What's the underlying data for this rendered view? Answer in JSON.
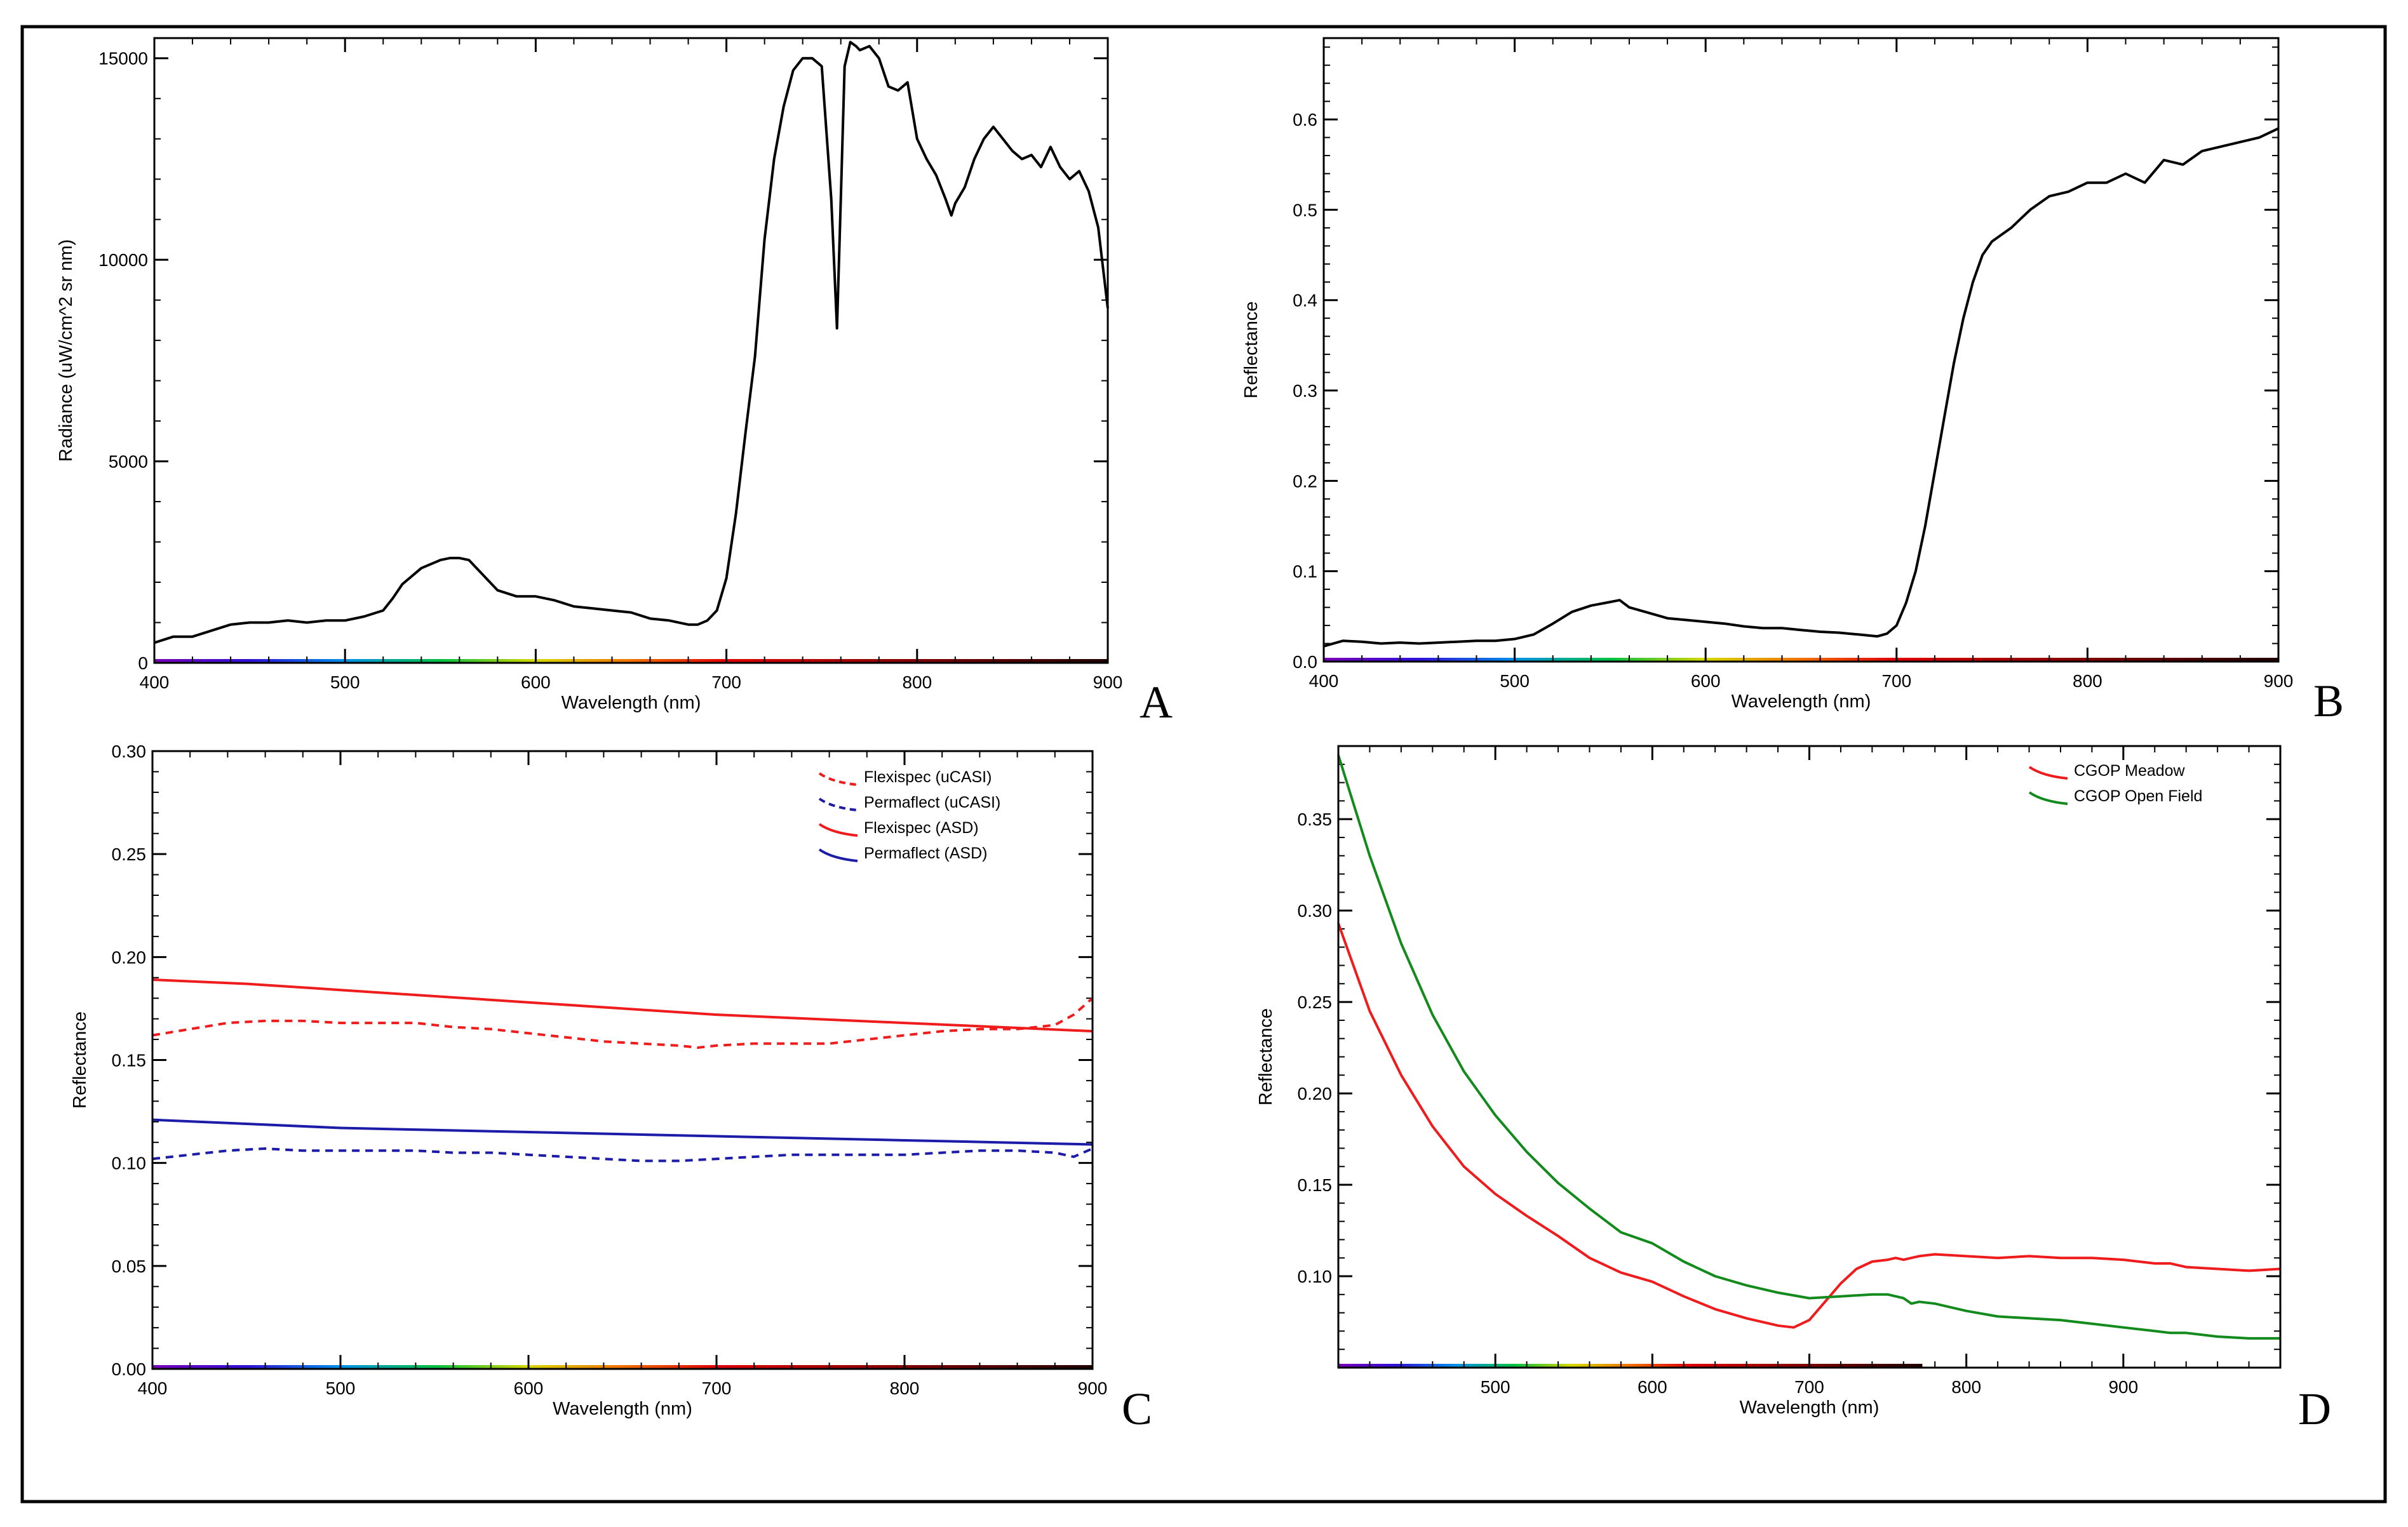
{
  "colors": {
    "axis": "#000000",
    "red": "#ee1c1c",
    "blue": "#1c1ca8",
    "green": "#138a1c",
    "black": "#000000"
  },
  "chart_data": [
    {
      "type": "line",
      "panel_label": "A",
      "title": "",
      "xlabel": "Wavelength (nm)",
      "ylabel": "Radiance (uW/cm^2 sr nm)",
      "xlim": [
        400,
        900
      ],
      "ylim": [
        0,
        15500
      ],
      "xticks": [
        400,
        500,
        600,
        700,
        800,
        900
      ],
      "xtick_labels": [
        "400",
        "500",
        "600",
        "700",
        "800",
        "900"
      ],
      "yticks": [
        0,
        5000,
        10000,
        15000
      ],
      "ytick_labels": [
        "0",
        "5000",
        "10000",
        "15000"
      ],
      "legend": [],
      "series": [
        {
          "name": "Radiance",
          "color": "#000000",
          "dash": false,
          "x": [
            400,
            410,
            420,
            430,
            440,
            450,
            460,
            470,
            480,
            490,
            500,
            510,
            520,
            525,
            530,
            540,
            550,
            555,
            560,
            565,
            570,
            580,
            590,
            600,
            610,
            620,
            630,
            640,
            650,
            660,
            670,
            680,
            685,
            690,
            695,
            700,
            705,
            710,
            715,
            720,
            725,
            730,
            735,
            740,
            745,
            750,
            755,
            758,
            760,
            762,
            765,
            768,
            770,
            775,
            780,
            785,
            790,
            795,
            800,
            805,
            810,
            815,
            818,
            820,
            825,
            830,
            835,
            840,
            845,
            850,
            855,
            860,
            865,
            870,
            875,
            880,
            885,
            890,
            895,
            900
          ],
          "y": [
            500,
            650,
            650,
            800,
            950,
            1000,
            1000,
            1050,
            1000,
            1050,
            1050,
            1150,
            1300,
            1600,
            1950,
            2350,
            2550,
            2600,
            2600,
            2550,
            2300,
            1800,
            1650,
            1650,
            1550,
            1400,
            1350,
            1300,
            1250,
            1100,
            1050,
            950,
            950,
            1050,
            1300,
            2100,
            3700,
            5700,
            7600,
            10500,
            12500,
            13800,
            14700,
            15000,
            15000,
            14800,
            11500,
            8300,
            11500,
            14800,
            15400,
            15300,
            15200,
            15300,
            15000,
            14300,
            14200,
            14400,
            13000,
            12500,
            12100,
            11500,
            11100,
            11400,
            11800,
            12500,
            13000,
            13300,
            13000,
            12700,
            12500,
            12600,
            12300,
            12800,
            12300,
            12000,
            12200,
            11700,
            10800,
            8800
          ]
        }
      ]
    },
    {
      "type": "line",
      "panel_label": "B",
      "title": "",
      "xlabel": "Wavelength (nm)",
      "ylabel": "Reflectance",
      "xlim": [
        400,
        900
      ],
      "ylim": [
        0,
        0.69
      ],
      "xticks": [
        400,
        500,
        600,
        700,
        800,
        900
      ],
      "xtick_labels": [
        "400",
        "500",
        "600",
        "700",
        "800",
        "900"
      ],
      "yticks": [
        0,
        0.1,
        0.2,
        0.3,
        0.4,
        0.5,
        0.6
      ],
      "ytick_labels": [
        "0.0",
        "0.1",
        "0.2",
        "0.3",
        "0.4",
        "0.5",
        "0.6"
      ],
      "legend": [],
      "series": [
        {
          "name": "Reflectance",
          "color": "#000000",
          "dash": false,
          "x": [
            400,
            410,
            420,
            430,
            440,
            450,
            460,
            470,
            480,
            490,
            500,
            510,
            520,
            530,
            540,
            550,
            555,
            560,
            570,
            580,
            590,
            600,
            610,
            620,
            630,
            640,
            650,
            660,
            670,
            680,
            690,
            695,
            700,
            705,
            710,
            715,
            720,
            725,
            730,
            735,
            740,
            745,
            750,
            760,
            770,
            780,
            790,
            800,
            810,
            820,
            830,
            840,
            850,
            860,
            870,
            880,
            890,
            900
          ],
          "y": [
            0.017,
            0.023,
            0.022,
            0.02,
            0.021,
            0.02,
            0.021,
            0.022,
            0.023,
            0.023,
            0.025,
            0.03,
            0.042,
            0.055,
            0.062,
            0.066,
            0.068,
            0.06,
            0.054,
            0.048,
            0.046,
            0.044,
            0.042,
            0.039,
            0.037,
            0.037,
            0.035,
            0.033,
            0.032,
            0.03,
            0.028,
            0.031,
            0.04,
            0.065,
            0.1,
            0.15,
            0.21,
            0.27,
            0.33,
            0.38,
            0.42,
            0.45,
            0.465,
            0.48,
            0.5,
            0.515,
            0.52,
            0.53,
            0.53,
            0.54,
            0.53,
            0.555,
            0.55,
            0.565,
            0.57,
            0.575,
            0.58,
            0.59
          ]
        }
      ]
    },
    {
      "type": "line",
      "panel_label": "C",
      "title": "",
      "xlabel": "Wavelength (nm)",
      "ylabel": "Reflectance",
      "xlim": [
        400,
        900
      ],
      "ylim": [
        0,
        0.3
      ],
      "xticks": [
        400,
        500,
        600,
        700,
        800,
        900
      ],
      "xtick_labels": [
        "400",
        "500",
        "600",
        "700",
        "800",
        "900"
      ],
      "yticks": [
        0,
        0.05,
        0.1,
        0.15,
        0.2,
        0.25,
        0.3
      ],
      "ytick_labels": [
        "0.00",
        "0.05",
        "0.10",
        "0.15",
        "0.20",
        "0.25",
        "0.30"
      ],
      "legend": [
        "Flexispec (uCASI)",
        "Permaflect (uCASI)",
        "Flexispec (ASD)",
        "Permaflect (ASD)"
      ],
      "legend_position": "top-right",
      "series": [
        {
          "name": "Flexispec (uCASI)",
          "color": "#ee1c1c",
          "dash": true,
          "x": [
            400,
            420,
            440,
            460,
            480,
            500,
            520,
            540,
            560,
            580,
            600,
            620,
            640,
            660,
            680,
            690,
            700,
            720,
            740,
            760,
            780,
            800,
            820,
            840,
            860,
            880,
            890,
            900
          ],
          "y": [
            0.162,
            0.165,
            0.168,
            0.169,
            0.169,
            0.168,
            0.168,
            0.168,
            0.166,
            0.165,
            0.163,
            0.161,
            0.159,
            0.158,
            0.157,
            0.156,
            0.157,
            0.158,
            0.158,
            0.158,
            0.16,
            0.162,
            0.164,
            0.165,
            0.165,
            0.167,
            0.172,
            0.18
          ]
        },
        {
          "name": "Permaflect (uCASI)",
          "color": "#1c1ca8",
          "dash": true,
          "x": [
            400,
            420,
            440,
            460,
            480,
            500,
            520,
            540,
            560,
            580,
            600,
            620,
            640,
            660,
            680,
            700,
            720,
            740,
            760,
            780,
            800,
            820,
            840,
            860,
            880,
            890,
            900
          ],
          "y": [
            0.102,
            0.104,
            0.106,
            0.107,
            0.106,
            0.106,
            0.106,
            0.106,
            0.105,
            0.105,
            0.104,
            0.103,
            0.102,
            0.101,
            0.101,
            0.102,
            0.103,
            0.104,
            0.104,
            0.104,
            0.104,
            0.105,
            0.106,
            0.106,
            0.105,
            0.103,
            0.107
          ]
        },
        {
          "name": "Flexispec (ASD)",
          "color": "#ee1c1c",
          "dash": false,
          "x": [
            400,
            450,
            500,
            550,
            600,
            650,
            700,
            750,
            800,
            850,
            900
          ],
          "y": [
            0.189,
            0.187,
            0.184,
            0.181,
            0.178,
            0.175,
            0.172,
            0.17,
            0.168,
            0.166,
            0.164
          ]
        },
        {
          "name": "Permaflect (ASD)",
          "color": "#1c1ca8",
          "dash": false,
          "x": [
            400,
            450,
            500,
            550,
            600,
            650,
            700,
            750,
            800,
            850,
            900
          ],
          "y": [
            0.121,
            0.119,
            0.117,
            0.116,
            0.115,
            0.114,
            0.113,
            0.112,
            0.111,
            0.11,
            0.109
          ]
        }
      ]
    },
    {
      "type": "line",
      "panel_label": "D",
      "title": "",
      "xlabel": "Wavelength (nm)",
      "ylabel": "Reflectance",
      "xlim": [
        400,
        1000
      ],
      "ylim": [
        0.05,
        0.39
      ],
      "xticks": [
        500,
        600,
        700,
        800,
        900
      ],
      "xtick_labels": [
        "500",
        "600",
        "700",
        "800",
        "900"
      ],
      "yticks": [
        0.1,
        0.15,
        0.2,
        0.25,
        0.3,
        0.35
      ],
      "ytick_labels": [
        "0.10",
        "0.15",
        "0.20",
        "0.25",
        "0.30",
        "0.35"
      ],
      "legend": [
        "CGOP Meadow",
        "CGOP Open Field"
      ],
      "legend_position": "top-right",
      "series": [
        {
          "name": "CGOP Meadow",
          "color": "#ee1c1c",
          "dash": false,
          "x": [
            400,
            420,
            440,
            460,
            480,
            500,
            520,
            540,
            560,
            580,
            600,
            620,
            640,
            660,
            680,
            690,
            700,
            710,
            720,
            730,
            740,
            750,
            755,
            760,
            765,
            770,
            780,
            800,
            820,
            840,
            860,
            880,
            900,
            920,
            930,
            940,
            960,
            980,
            1000
          ],
          "y": [
            0.293,
            0.245,
            0.21,
            0.182,
            0.16,
            0.145,
            0.133,
            0.122,
            0.11,
            0.102,
            0.097,
            0.089,
            0.082,
            0.077,
            0.073,
            0.072,
            0.076,
            0.086,
            0.096,
            0.104,
            0.108,
            0.109,
            0.11,
            0.109,
            0.11,
            0.111,
            0.112,
            0.111,
            0.11,
            0.111,
            0.11,
            0.11,
            0.109,
            0.107,
            0.107,
            0.105,
            0.104,
            0.103,
            0.104
          ]
        },
        {
          "name": "CGOP Open Field",
          "color": "#138a1c",
          "dash": false,
          "x": [
            400,
            420,
            440,
            460,
            480,
            500,
            520,
            540,
            560,
            580,
            600,
            620,
            640,
            660,
            680,
            700,
            720,
            740,
            750,
            760,
            765,
            770,
            780,
            800,
            820,
            840,
            860,
            880,
            900,
            920,
            930,
            940,
            960,
            980,
            1000
          ],
          "y": [
            0.385,
            0.33,
            0.282,
            0.243,
            0.212,
            0.188,
            0.168,
            0.151,
            0.137,
            0.124,
            0.118,
            0.108,
            0.1,
            0.095,
            0.091,
            0.088,
            0.089,
            0.09,
            0.09,
            0.088,
            0.085,
            0.086,
            0.085,
            0.081,
            0.078,
            0.077,
            0.076,
            0.074,
            0.072,
            0.07,
            0.069,
            0.069,
            0.067,
            0.066,
            0.066
          ]
        }
      ]
    }
  ]
}
